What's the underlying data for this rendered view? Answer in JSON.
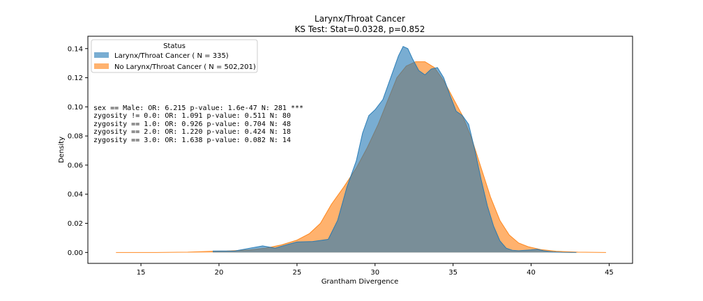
{
  "chart_data": {
    "type": "area",
    "title": "Larynx/Throat Cancer",
    "subtitle": "KS Test: Stat=0.0328, p=0.852",
    "xlabel": "Grantham Divergence",
    "ylabel": "Density",
    "xlim": [
      11.6,
      46.5
    ],
    "ylim": [
      -0.0075,
      0.1485
    ],
    "xticks": [
      15,
      20,
      25,
      30,
      35,
      40,
      45
    ],
    "yticks": [
      0.0,
      0.02,
      0.04,
      0.06,
      0.08,
      0.1,
      0.12,
      0.14
    ],
    "xtick_labels": [
      "15",
      "20",
      "25",
      "30",
      "35",
      "40",
      "45"
    ],
    "ytick_labels": [
      "0.00",
      "0.02",
      "0.04",
      "0.06",
      "0.08",
      "0.10",
      "0.12",
      "0.14"
    ],
    "grid": false,
    "legend": {
      "title": "Status",
      "placement": "top-left",
      "entries": [
        "Larynx/Throat Cancer ( N = 335)",
        "No Larynx/Throat Cancer ( N = 502,201)"
      ]
    },
    "annotations": [
      "sex == Male: OR: 6.215 p-value: 1.6e-47 N: 281 ***",
      "zygosity != 0.0: OR: 1.091 p-value: 0.511 N: 80",
      "zygosity == 1.0: OR: 0.926 p-value: 0.704 N: 48",
      "zygosity == 2.0: OR: 1.220 p-value: 0.424 N: 18",
      "zygosity == 3.0: OR: 1.638 p-value: 0.082 N: 14"
    ],
    "series": [
      {
        "name": "Larynx/Throat Cancer ( N = 335)",
        "color": "#1f77b4",
        "x": [
          19.6,
          21.0,
          22.0,
          22.8,
          23.6,
          24.4,
          25.0,
          26.0,
          27.0,
          27.6,
          28.2,
          28.8,
          29.2,
          29.6,
          30.0,
          30.5,
          31.0,
          31.5,
          31.8,
          32.1,
          32.4,
          32.8,
          33.2,
          33.6,
          34.0,
          34.4,
          34.8,
          35.2,
          35.6,
          36.0,
          36.4,
          36.8,
          37.2,
          37.6,
          38.0,
          38.4,
          38.8,
          39.2,
          39.6,
          40.0,
          40.4,
          40.8,
          41.4,
          42.0,
          42.9
        ],
        "y": [
          0.001,
          0.001,
          0.003,
          0.0045,
          0.003,
          0.0055,
          0.0072,
          0.0075,
          0.009,
          0.022,
          0.045,
          0.063,
          0.082,
          0.094,
          0.098,
          0.105,
          0.12,
          0.135,
          0.1415,
          0.14,
          0.133,
          0.125,
          0.122,
          0.126,
          0.127,
          0.12,
          0.108,
          0.097,
          0.094,
          0.088,
          0.07,
          0.05,
          0.032,
          0.018,
          0.008,
          0.003,
          0.0015,
          0.0012,
          0.0015,
          0.0018,
          0.0022,
          0.0012,
          0.0004,
          0.0001,
          0.0
        ]
      },
      {
        "name": "No Larynx/Throat Cancer ( N = 502,201)",
        "color": "#ff7f0e",
        "x": [
          13.4,
          16.0,
          18.0,
          19.5,
          20.5,
          22.0,
          23.0,
          24.0,
          25.0,
          25.8,
          26.5,
          27.2,
          28.0,
          28.8,
          29.5,
          30.2,
          30.8,
          31.4,
          32.0,
          32.6,
          33.2,
          33.8,
          34.4,
          35.0,
          35.6,
          36.2,
          36.8,
          37.4,
          38.0,
          38.6,
          39.2,
          39.8,
          40.6,
          41.6,
          43.0,
          44.8
        ],
        "y": [
          0.0,
          0.0,
          0.0002,
          0.0008,
          0.001,
          0.0018,
          0.003,
          0.0052,
          0.0085,
          0.013,
          0.02,
          0.033,
          0.045,
          0.058,
          0.072,
          0.088,
          0.104,
          0.12,
          0.128,
          0.131,
          0.131,
          0.127,
          0.118,
          0.106,
          0.094,
          0.078,
          0.058,
          0.038,
          0.022,
          0.012,
          0.0065,
          0.004,
          0.002,
          0.0008,
          0.0002,
          0.0
        ]
      }
    ]
  }
}
